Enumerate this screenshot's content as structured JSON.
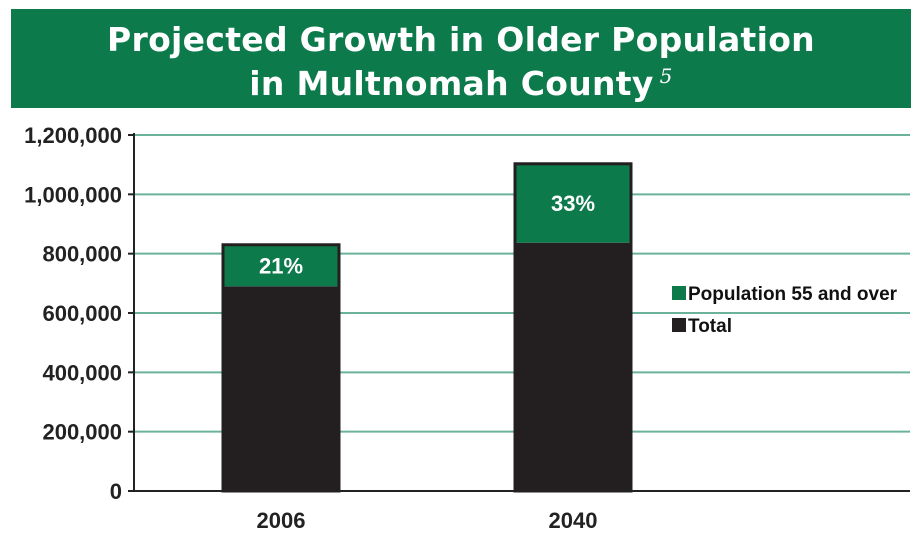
{
  "chart_data": {
    "type": "bar",
    "stacked": true,
    "title_line1": "Projected Growth in Older Population",
    "title_line2": "in Multnomah County",
    "title_footnote": "5",
    "categories": [
      "2006",
      "2040"
    ],
    "series": [
      {
        "name": "Total",
        "values": [
          690000,
          837000
        ],
        "color": "#231f20"
      },
      {
        "name": "Population 55 and over",
        "values": [
          140000,
          266000
        ],
        "color": "#0d7a4c"
      }
    ],
    "data_labels": [
      "21%",
      "33%"
    ],
    "yticks": [
      0,
      200000,
      400000,
      600000,
      800000,
      1000000,
      1200000
    ],
    "ytick_labels": [
      "0",
      "200,000",
      "400,000",
      "600,000",
      "800,000",
      "1,000,000",
      "1,200,000"
    ],
    "ylim": [
      0,
      1200000
    ],
    "grid": true,
    "grid_color": "#6ab29a",
    "legend_position": "right",
    "legend_order": [
      "Population 55 and over",
      "Total"
    ]
  }
}
